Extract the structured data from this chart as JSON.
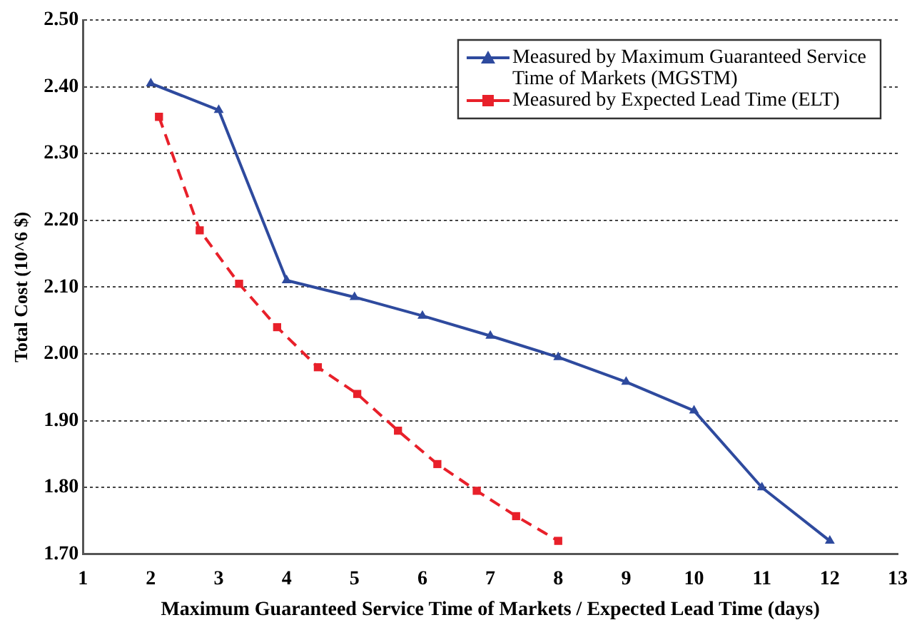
{
  "chart_data": {
    "type": "line",
    "xlabel": "Maximum Guaranteed Service Time of Markets / Expected Lead Time (days)",
    "ylabel": "Total Cost (10^6 $)",
    "xlim": [
      1,
      13
    ],
    "xticks": [
      1,
      2,
      3,
      4,
      5,
      6,
      7,
      8,
      9,
      10,
      11,
      12,
      13
    ],
    "ylim": [
      1.7,
      2.5
    ],
    "yticks": [
      {
        "value": 1.7,
        "label": "1.70"
      },
      {
        "value": 1.8,
        "label": "1.80"
      },
      {
        "value": 1.9,
        "label": "1.90"
      },
      {
        "value": 2.0,
        "label": "2.00"
      },
      {
        "value": 2.1,
        "label": "2.10"
      },
      {
        "value": 2.2,
        "label": "2.20"
      },
      {
        "value": 2.3,
        "label": "2.30"
      },
      {
        "value": 2.4,
        "label": "2.40"
      },
      {
        "value": 2.5,
        "label": "2.50"
      }
    ],
    "grid": "y",
    "legend": "top right",
    "series": [
      {
        "name": "Measured by Maximum Guaranteed Service Time of Markets (MGSTM)",
        "color": "#2e4a9e",
        "marker": "triangle",
        "line_style": "solid",
        "x": [
          2,
          3,
          4,
          5,
          6,
          7,
          8,
          9,
          10,
          11,
          12
        ],
        "values": [
          2.405,
          2.365,
          2.11,
          2.085,
          2.057,
          2.027,
          1.995,
          1.958,
          1.915,
          1.8,
          1.72
        ]
      },
      {
        "name": "Measured by Expected Lead Time (ELT)",
        "color": "#e8202a",
        "marker": "square",
        "line_style": "dashed",
        "x": [
          2.12,
          2.72,
          3.3,
          3.86,
          4.46,
          5.04,
          5.64,
          6.22,
          6.8,
          7.38,
          8.0
        ],
        "values": [
          2.355,
          2.185,
          2.105,
          2.04,
          1.98,
          1.94,
          1.885,
          1.835,
          1.795,
          1.757,
          1.72
        ]
      }
    ]
  }
}
